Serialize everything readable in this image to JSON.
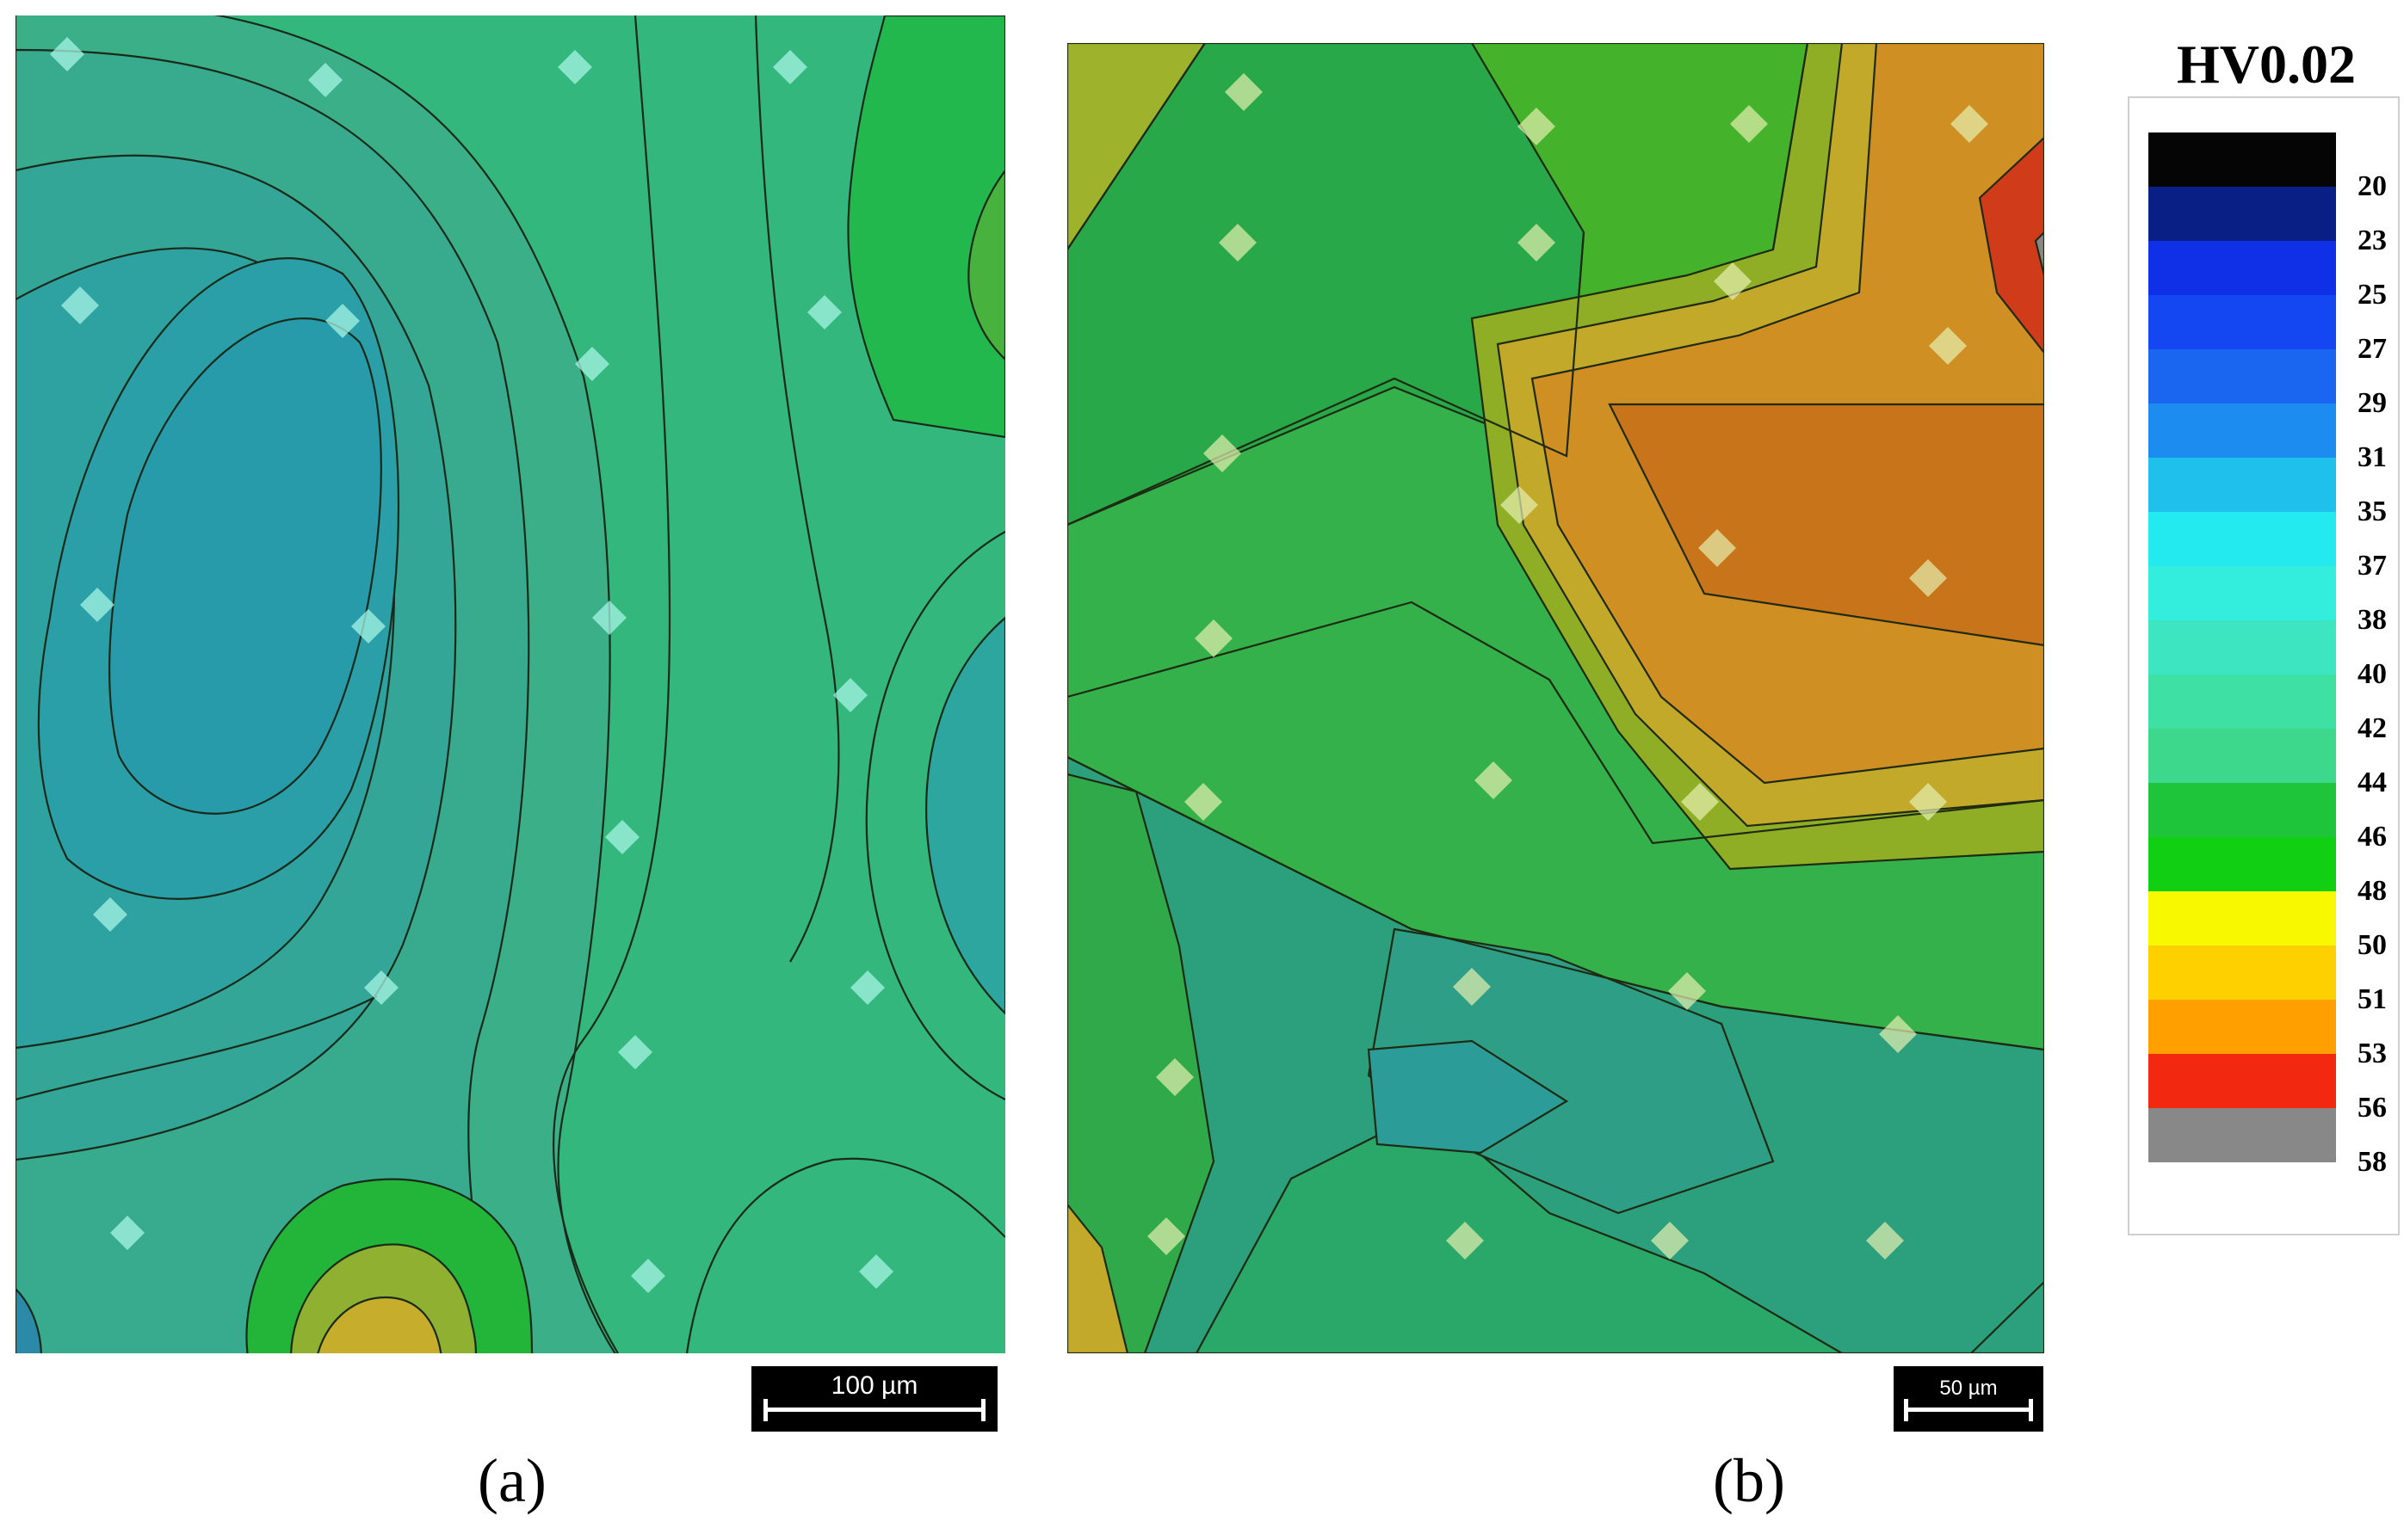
{
  "chart_data": {
    "type": "heatmap",
    "title": "HV0.02",
    "colorbar": {
      "ticks": [
        "20",
        "23",
        "25",
        "27",
        "29",
        "31",
        "35",
        "37",
        "38",
        "40",
        "42",
        "44",
        "46",
        "48",
        "50",
        "51",
        "53",
        "56",
        "58"
      ],
      "band_colors": [
        "#050505",
        "#0a1f86",
        "#1030e8",
        "#1447f2",
        "#1a66f0",
        "#1d8cf0",
        "#1fc0ec",
        "#22eaee",
        "#33eedd",
        "#3de6c0",
        "#3ee0a4",
        "#3ed88c",
        "#1ec43a",
        "#11d013",
        "#f8f800",
        "#ffd000",
        "#ffa000",
        "#f22810",
        "#888888"
      ]
    },
    "panels": [
      {
        "caption": "(a)",
        "scale_bar": "100 µm",
        "contour_levels": [
          37,
          38,
          40,
          42,
          44,
          46,
          48,
          51
        ]
      },
      {
        "caption": "(b)",
        "scale_bar": "50 µm",
        "contour_levels": [
          40,
          42,
          44,
          46,
          48,
          50,
          51,
          53,
          56,
          58
        ]
      }
    ]
  }
}
